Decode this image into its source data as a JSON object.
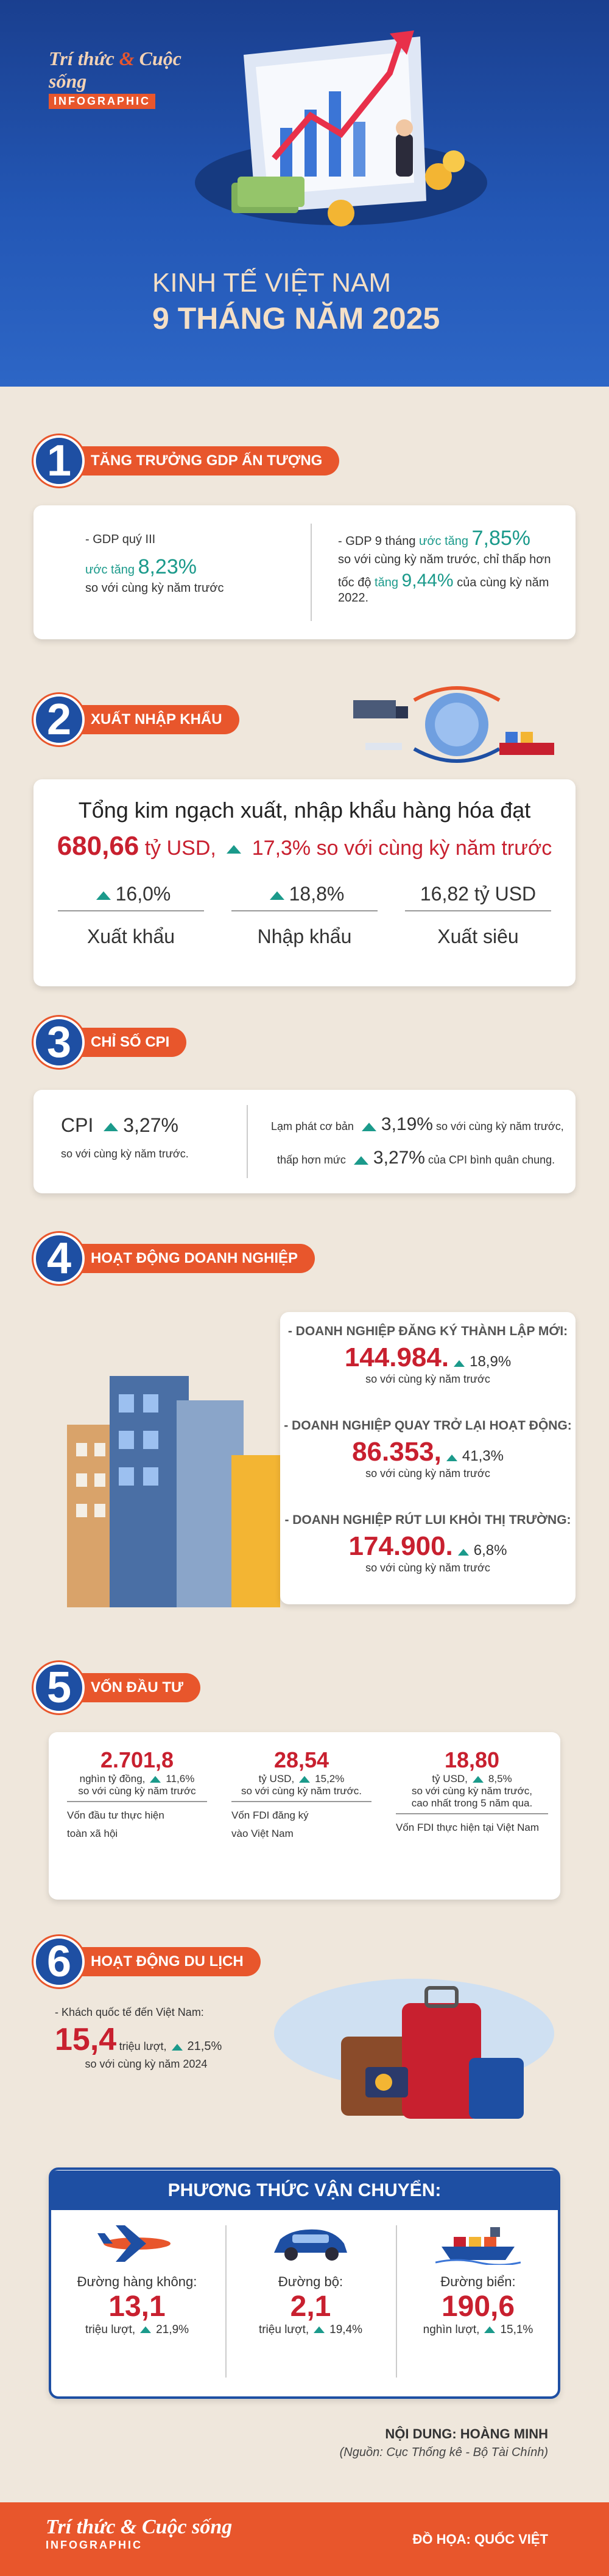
{
  "brand": {
    "top_a": "Trí thức",
    "top_amp": "&",
    "top_b": "Cuộc sống",
    "bottom": "INFOGRAPHIC"
  },
  "title": {
    "line1": "KINH TẾ VIỆT NAM",
    "line2": "9 THÁNG NĂM 2025"
  },
  "s1": {
    "num": "1",
    "label": "TĂNG TRƯỞNG GDP ẤN TƯỢNG",
    "left": {
      "l1": "- GDP quý III",
      "l2a": "ước tăng",
      "l2b": "8,23%",
      "l3": "so với cùng kỳ năm trước"
    },
    "right": {
      "l1a": "- GDP 9 tháng",
      "l1b": "ước tăng",
      "l1c": "7,85%",
      "l2": "so với cùng kỳ năm trước, chỉ thấp hơn",
      "l3a": "tốc độ",
      "l3b": "tăng",
      "l3c": "9,44%",
      "l3d": "của cùng kỳ năm 2022."
    }
  },
  "s2": {
    "num": "2",
    "label": "XUẤT NHẬP KHẨU",
    "headline": "Tổng kim ngạch xuất, nhập khẩu hàng hóa đạt",
    "value": "680,66",
    "unit": "tỷ USD,",
    "growth": "17,3% so với cùng kỳ năm trước",
    "items": [
      {
        "value": "16,0%",
        "label": "Xuất khẩu"
      },
      {
        "value": "18,8%",
        "label": "Nhập khẩu"
      },
      {
        "value": "16,82 tỷ USD",
        "label": "Xuất siêu"
      }
    ]
  },
  "s3": {
    "num": "3",
    "label": "CHỈ SỐ CPI",
    "cpi": "CPI",
    "cpi_val": "3,27%",
    "cpi_sub": "so với cùng kỳ năm trước.",
    "r1a": "Lạm phát cơ bản",
    "r1b": "3,19%",
    "r1c": "so với cùng kỳ năm trước,",
    "r2a": "thấp hơn mức",
    "r2b": "3,27%",
    "r2c": "của CPI bình quân chung."
  },
  "s4": {
    "num": "4",
    "label": "HOẠT ĐỘNG DOANH NGHIỆP",
    "items": [
      {
        "title": "- DOANH NGHIỆP ĐĂNG KÝ THÀNH LẬP MỚI:",
        "value": "144.984.",
        "pct": "18,9%",
        "sub": "so với cùng kỳ năm trước"
      },
      {
        "title": "- DOANH NGHIỆP QUAY TRỞ LẠI HOẠT ĐỘNG:",
        "value": "86.353,",
        "pct": "41,3%",
        "sub": "so với cùng kỳ năm trước"
      },
      {
        "title": "- DOANH NGHIỆP RÚT LUI KHỎI THỊ TRƯỜNG:",
        "value": "174.900.",
        "pct": "6,8%",
        "sub": "so với cùng kỳ năm trước"
      }
    ]
  },
  "s5": {
    "num": "5",
    "label": "VỐN ĐẦU TƯ",
    "cols": [
      {
        "value": "2.701,8",
        "unit": "nghìn tỷ đồng,",
        "pct": "11,6%",
        "sub": "so với cùng kỳ năm trước",
        "desc1": "Vốn đầu tư thực hiện",
        "desc2": "toàn xã hội"
      },
      {
        "value": "28,54",
        "unit": "tỷ USD,",
        "pct": "15,2%",
        "sub": "so với cùng kỳ năm trước.",
        "desc1": "Vốn FDI đăng ký",
        "desc2": "vào Việt Nam"
      },
      {
        "value": "18,80",
        "unit": "tỷ USD,",
        "pct": "8,5%",
        "sub": "so với cùng kỳ năm trước,",
        "sub2": "cao nhất trong 5 năm qua.",
        "desc1": "Vốn FDI thực hiện tại Việt Nam",
        "desc2": ""
      }
    ]
  },
  "s6": {
    "num": "6",
    "label": "HOẠT ĐỘNG DU LỊCH",
    "l1": "- Khách quốc tế đến Việt Nam:",
    "value": "15,4",
    "unit": "triệu lượt,",
    "pct": "21,5%",
    "sub": "so với cùng kỳ năm 2024"
  },
  "transport": {
    "title": "PHƯƠNG THỨC VẬN CHUYỂN:",
    "cols": [
      {
        "label": "Đường hàng không:",
        "value": "13,1",
        "unit": "triệu lượt,",
        "pct": "21,9%"
      },
      {
        "label": "Đường bộ:",
        "value": "2,1",
        "unit": "triệu lượt,",
        "pct": "19,4%"
      },
      {
        "label": "Đường biển:",
        "value": "190,6",
        "unit": "nghìn lượt,",
        "pct": "15,1%"
      }
    ]
  },
  "credits": {
    "content": "NỘI DUNG: HOÀNG MINH",
    "source": "(Nguồn: Cục Thống kê - Bộ Tài Chính)",
    "graphic": "ĐỒ HỌA: QUỐC VIỆT"
  }
}
